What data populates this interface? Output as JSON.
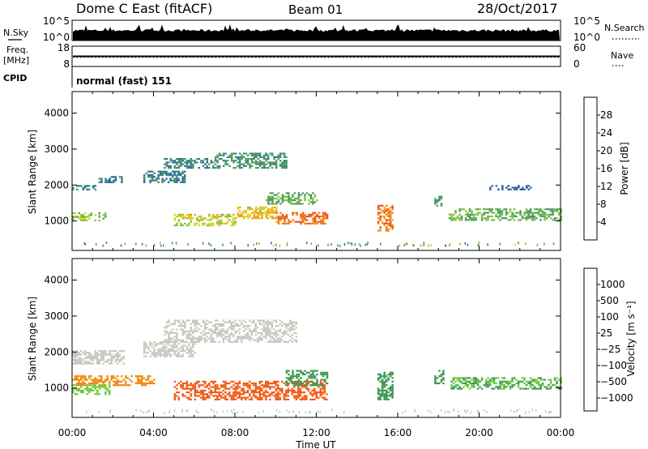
{
  "header": {
    "radar": "Dome C East (fitACF)",
    "beam": "Beam 01",
    "date": "28/Oct/2017"
  },
  "top_panels": {
    "nsky_label": "N.Sky",
    "nsky_ticks": [
      "10^5",
      "10^0"
    ],
    "nsearch_label": "N.Search",
    "nsearch_ticks": [
      "10^5",
      "10^0"
    ],
    "freq_label_1": "Freq.",
    "freq_label_2": "[MHz]",
    "freq_ticks": [
      "18",
      "8"
    ],
    "nave_label": "Nave",
    "nave_ticks": [
      "60",
      "0"
    ],
    "cpid_label": "CPID",
    "cpid_text": "normal (fast) 151"
  },
  "colors": {
    "power": [
      "#1e1ee6",
      "#2446a8",
      "#2a66a4",
      "#3c8a72",
      "#4e9b5a",
      "#7fc43c",
      "#dcd223",
      "#f5a51e",
      "#f07d14",
      "#e6501e",
      "#dc1e14"
    ],
    "velocity": [
      "#e61414",
      "#f05a14",
      "#f08c14",
      "#f0b41e",
      "#c8c8c0",
      "#c8c8c0",
      "#6ecd3c",
      "#3c9650",
      "#2a7874",
      "#2846a8",
      "#1e28c8"
    ]
  },
  "chart_data": [
    {
      "type": "heatmap",
      "name": "power-panel",
      "xlabel": "Time UT",
      "ylabel": "Slant Range [km]",
      "x_ticks": [
        "00:00",
        "04:00",
        "08:00",
        "12:00",
        "16:00",
        "20:00",
        "00:00"
      ],
      "xlim_hours": [
        0,
        24
      ],
      "y_ticks": [
        1000,
        2000,
        3000,
        4000
      ],
      "ylim_km": [
        180,
        4600
      ],
      "colorbar": {
        "label": "Power [dB]",
        "ticks": [
          4,
          8,
          12,
          16,
          20,
          24,
          28
        ],
        "range": [
          0,
          32
        ]
      },
      "regions": [
        {
          "t0": 0.0,
          "t1": 1.2,
          "r0": 1900,
          "r1": 2000,
          "value": 8
        },
        {
          "t0": 0.0,
          "t1": 1.6,
          "r0": 1020,
          "r1": 1240,
          "value": 16
        },
        {
          "t0": 1.2,
          "t1": 2.4,
          "r0": 2100,
          "r1": 2250,
          "value": 8
        },
        {
          "t0": 3.5,
          "t1": 5.5,
          "r0": 2100,
          "r1": 2400,
          "value": 9
        },
        {
          "t0": 4.5,
          "t1": 7.0,
          "r0": 2500,
          "r1": 2750,
          "value": 10
        },
        {
          "t0": 7.0,
          "t1": 10.5,
          "r0": 2500,
          "r1": 2900,
          "value": 11
        },
        {
          "t0": 5.0,
          "t1": 8.0,
          "r0": 900,
          "r1": 1200,
          "value": 18
        },
        {
          "t0": 8.0,
          "t1": 10.0,
          "r0": 1100,
          "r1": 1400,
          "value": 20
        },
        {
          "t0": 10.0,
          "t1": 12.5,
          "r0": 950,
          "r1": 1250,
          "value": 26
        },
        {
          "t0": 9.5,
          "t1": 12.0,
          "r0": 1500,
          "r1": 1800,
          "value": 14
        },
        {
          "t0": 15.0,
          "t1": 15.7,
          "r0": 750,
          "r1": 1450,
          "value": 25
        },
        {
          "t0": 17.8,
          "t1": 18.2,
          "r0": 1450,
          "r1": 1700,
          "value": 12
        },
        {
          "t0": 18.5,
          "t1": 24.0,
          "r0": 1050,
          "r1": 1350,
          "value": 14
        },
        {
          "t0": 20.5,
          "t1": 22.5,
          "r0": 1900,
          "r1": 2000,
          "value": 7
        }
      ]
    },
    {
      "type": "heatmap",
      "name": "velocity-panel",
      "xlabel": "Time UT",
      "ylabel": "Slant Range [km]",
      "x_ticks": [
        "00:00",
        "04:00",
        "08:00",
        "12:00",
        "16:00",
        "20:00",
        "00:00"
      ],
      "xlim_hours": [
        0,
        24
      ],
      "y_ticks": [
        1000,
        2000,
        3000,
        4000
      ],
      "ylim_km": [
        180,
        4600
      ],
      "colorbar": {
        "label": "Velocity [m s⁻¹]",
        "ticks": [
          "1000",
          "500",
          "100",
          "25",
          "−25",
          "−100",
          "−500",
          "−1000"
        ]
      },
      "regions": [
        {
          "t0": 0.0,
          "t1": 2.5,
          "r0": 1700,
          "r1": 2050,
          "value": 0
        },
        {
          "t0": 0.0,
          "t1": 1.8,
          "r0": 850,
          "r1": 1100,
          "value": 60
        },
        {
          "t0": 0.0,
          "t1": 4.0,
          "r0": 1100,
          "r1": 1350,
          "value": -150
        },
        {
          "t0": 3.5,
          "t1": 6.0,
          "r0": 1900,
          "r1": 2300,
          "value": 0
        },
        {
          "t0": 4.5,
          "t1": 11.0,
          "r0": 2300,
          "r1": 2900,
          "value": 0
        },
        {
          "t0": 5.0,
          "t1": 12.5,
          "r0": 700,
          "r1": 1200,
          "value": -300
        },
        {
          "t0": 10.5,
          "t1": 12.5,
          "r0": 1100,
          "r1": 1500,
          "value": 150
        },
        {
          "t0": 15.0,
          "t1": 15.7,
          "r0": 700,
          "r1": 1450,
          "value": 150
        },
        {
          "t0": 17.8,
          "t1": 18.2,
          "r0": 1150,
          "r1": 1500,
          "value": 150
        },
        {
          "t0": 18.5,
          "t1": 24.0,
          "r0": 1000,
          "r1": 1300,
          "value": 100
        }
      ]
    }
  ]
}
